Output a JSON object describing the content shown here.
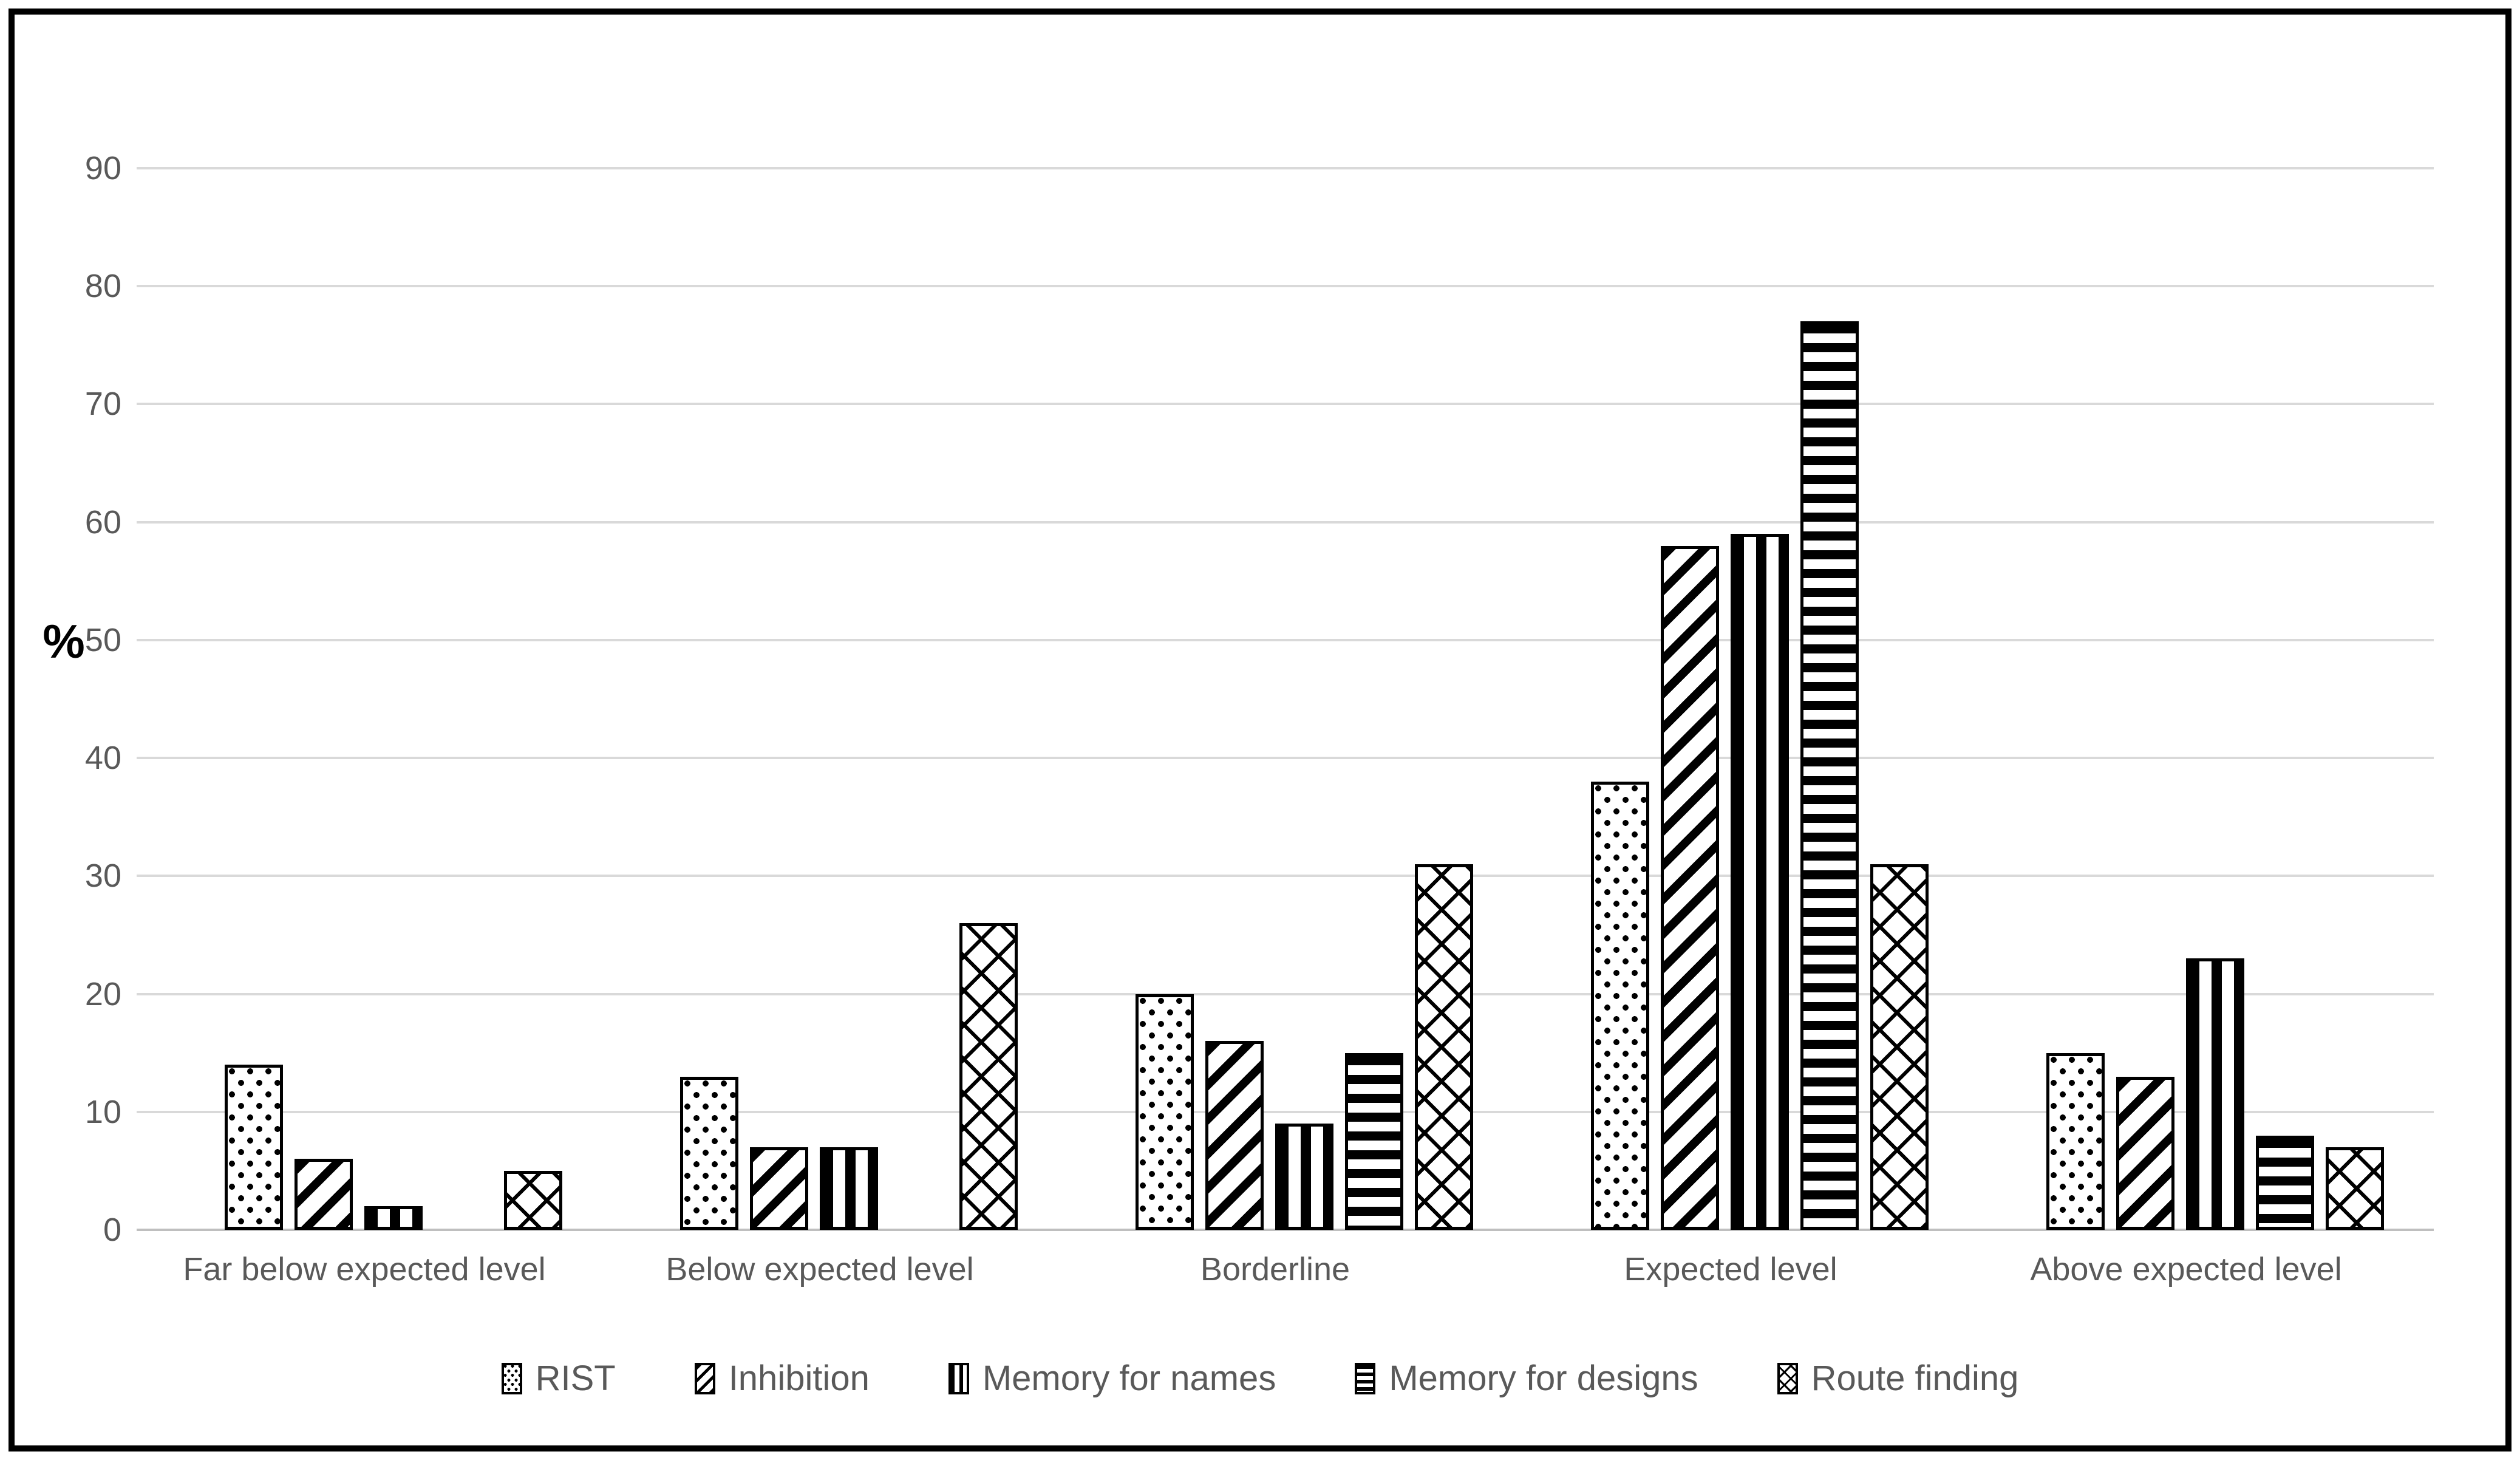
{
  "chart_data": {
    "type": "bar",
    "title": "",
    "xlabel": "",
    "ylabel": "%",
    "categories": [
      "Far below expected level",
      "Below expected level",
      "Borderline",
      "Expected level",
      "Above expected level"
    ],
    "series": [
      {
        "name": "RIST",
        "pattern": "dots",
        "values": [
          14,
          13,
          20,
          38,
          15
        ]
      },
      {
        "name": "Inhibition",
        "pattern": "diagonal",
        "values": [
          6,
          7,
          16,
          58,
          13
        ]
      },
      {
        "name": "Memory for names",
        "pattern": "vertical",
        "values": [
          2,
          7,
          9,
          59,
          23
        ]
      },
      {
        "name": "Memory for designs",
        "pattern": "horizontal",
        "values": [
          0,
          0,
          15,
          77,
          8
        ]
      },
      {
        "name": "Route finding",
        "pattern": "crosshatch",
        "values": [
          5,
          26,
          31,
          31,
          7
        ]
      }
    ],
    "y_ticks": [
      0,
      10,
      20,
      30,
      40,
      50,
      60,
      70,
      80,
      90
    ],
    "ylim": [
      0,
      90
    ],
    "grid": true,
    "legend_position": "bottom",
    "colors": {
      "bar_ink": "#000000",
      "bar_fill": "#FFFFFF",
      "grid_line": "#D9D9D9",
      "axis_line": "#BFBFBF",
      "tick_label": "#595959",
      "category_label": "#595959",
      "legend_label": "#595959",
      "ylabel_color": "#000000",
      "frame_border": "#000000",
      "background": "#FFFFFF"
    }
  }
}
